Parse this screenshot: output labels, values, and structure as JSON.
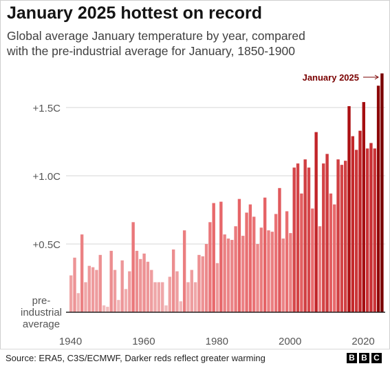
{
  "header": {
    "title": "January 2025 hottest on record",
    "subtitle_line1": "Global average January temperature by year, compared",
    "subtitle_line2": "with the pre-industrial average for January, 1850-1900"
  },
  "footer": {
    "source": "Source: ERA5, C3S/ECMWF, Darker reds reflect greater warming",
    "logo_letters": [
      "B",
      "B",
      "C"
    ]
  },
  "chart_data": {
    "type": "bar",
    "title": "January 2025 hottest on record",
    "xlabel": "",
    "ylabel": "",
    "baseline_label_lines": [
      "pre-",
      "industrial",
      "average"
    ],
    "annotation": "January 2025",
    "y_ticks": [
      {
        "value": 1.5,
        "label": "+1.5C"
      },
      {
        "value": 1.0,
        "label": "+1.0C"
      },
      {
        "value": 0.5,
        "label": "+0.5C"
      }
    ],
    "x_ticks": [
      {
        "value": 1940,
        "label": "1940"
      },
      {
        "value": 1960,
        "label": "1960"
      },
      {
        "value": 1980,
        "label": "1980"
      },
      {
        "value": 2000,
        "label": "2000"
      },
      {
        "value": 2020,
        "label": "2020"
      }
    ],
    "xlim": [
      1940,
      2025
    ],
    "ylim": [
      0,
      1.75
    ],
    "grid": true,
    "colors": {
      "light": "#f2bfc0",
      "mid": "#e8686b",
      "dark": "#b81418",
      "darkest": "#7a0000"
    },
    "x": [
      1940,
      1941,
      1942,
      1943,
      1944,
      1945,
      1946,
      1947,
      1948,
      1949,
      1950,
      1951,
      1952,
      1953,
      1954,
      1955,
      1956,
      1957,
      1958,
      1959,
      1960,
      1961,
      1962,
      1963,
      1964,
      1965,
      1966,
      1967,
      1968,
      1969,
      1970,
      1971,
      1972,
      1973,
      1974,
      1975,
      1976,
      1977,
      1978,
      1979,
      1980,
      1981,
      1982,
      1983,
      1984,
      1985,
      1986,
      1987,
      1988,
      1989,
      1990,
      1991,
      1992,
      1993,
      1994,
      1995,
      1996,
      1997,
      1998,
      1999,
      2000,
      2001,
      2002,
      2003,
      2004,
      2005,
      2006,
      2007,
      2008,
      2009,
      2010,
      2011,
      2012,
      2013,
      2014,
      2015,
      2016,
      2017,
      2018,
      2019,
      2020,
      2021,
      2022,
      2023,
      2024,
      2025
    ],
    "values": [
      0.27,
      0.4,
      0.14,
      0.57,
      0.22,
      0.34,
      0.33,
      0.31,
      0.42,
      0.05,
      0.04,
      0.45,
      0.31,
      0.09,
      0.38,
      0.17,
      0.3,
      0.66,
      0.45,
      0.39,
      0.43,
      0.37,
      0.31,
      0.22,
      0.22,
      0.22,
      0.05,
      0.26,
      0.46,
      0.3,
      0.08,
      0.6,
      0.22,
      0.31,
      0.22,
      0.42,
      0.41,
      0.5,
      0.66,
      0.8,
      0.36,
      0.81,
      0.57,
      0.54,
      0.53,
      0.63,
      0.83,
      0.56,
      0.73,
      0.79,
      0.7,
      0.5,
      0.62,
      0.84,
      0.6,
      0.59,
      0.72,
      0.91,
      0.54,
      0.74,
      0.58,
      1.06,
      1.09,
      0.87,
      1.12,
      1.06,
      0.76,
      1.32,
      0.63,
      1.09,
      1.16,
      0.87,
      0.79,
      1.12,
      1.08,
      1.11,
      1.51,
      1.29,
      1.19,
      1.33,
      1.54,
      1.2,
      1.24,
      1.2,
      1.66,
      1.75
    ]
  }
}
